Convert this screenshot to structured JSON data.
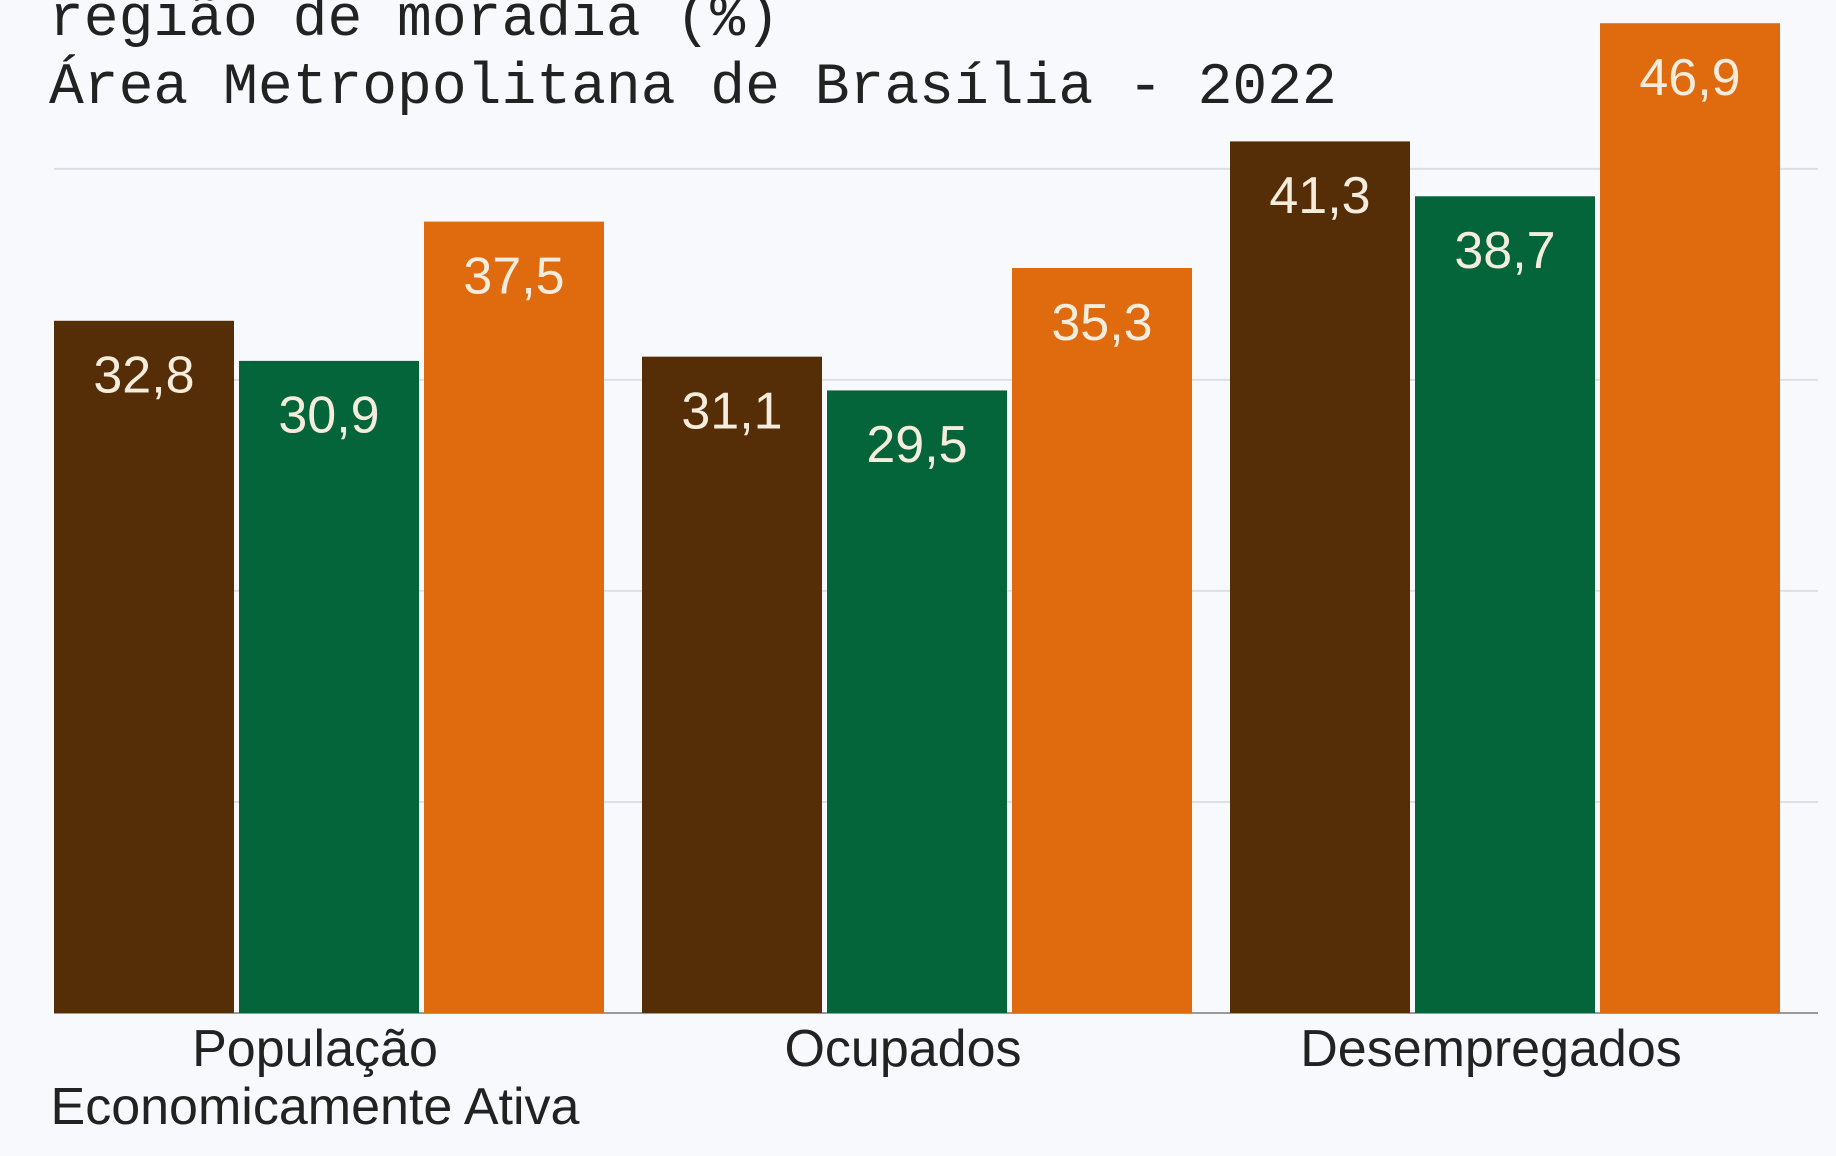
{
  "chart_data": {
    "type": "bar",
    "title": "região de moradia (%)",
    "subtitle": "Área Metropolitana de Brasília - 2022",
    "categories": [
      "População\nEconomicamente Ativa",
      "Ocupados",
      "Desempregados"
    ],
    "series": [
      {
        "color": "#552d07",
        "values": [
          32.8,
          31.1,
          41.3
        ],
        "value_labels": [
          "32,8",
          "31,1",
          "41,3"
        ]
      },
      {
        "color": "#05653a",
        "values": [
          30.9,
          29.5,
          38.7
        ],
        "value_labels": [
          "30,9",
          "29,5",
          "38,7"
        ]
      },
      {
        "color": "#e06a0e",
        "values": [
          37.5,
          35.3,
          46.9
        ],
        "value_labels": [
          "37,5",
          "35,3",
          "46,9"
        ]
      }
    ],
    "ylim": [
      0,
      48
    ],
    "yticks": [
      0,
      10,
      20,
      30,
      40
    ],
    "grid": true
  }
}
